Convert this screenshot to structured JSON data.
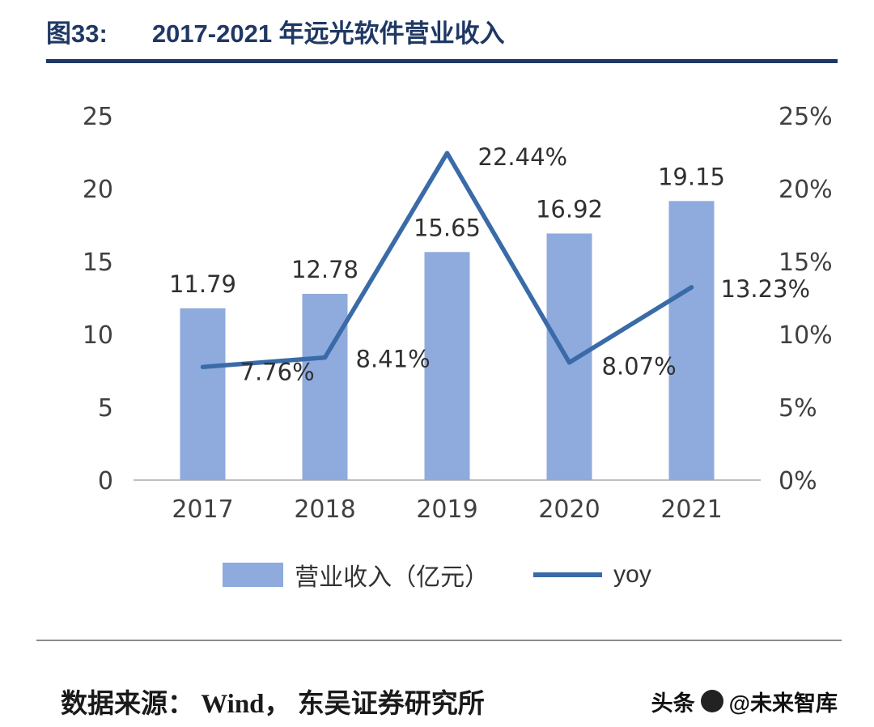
{
  "header": {
    "figure_label": "图33:",
    "title": "2017-2021 年远光软件营业收入"
  },
  "chart_data": {
    "type": "bar+line",
    "title": "2017-2021 年远光软件营业收入",
    "categories": [
      "2017",
      "2018",
      "2019",
      "2020",
      "2021"
    ],
    "series": [
      {
        "name": "营业收入（亿元）",
        "type": "bar",
        "axis": "left",
        "values": [
          11.79,
          12.78,
          15.65,
          16.92,
          19.15
        ],
        "labels": [
          "11.79",
          "12.78",
          "15.65",
          "16.92",
          "19.15"
        ],
        "color": "#8FAADC"
      },
      {
        "name": "yoy",
        "type": "line",
        "axis": "right",
        "values": [
          7.76,
          8.41,
          22.44,
          8.07,
          13.23
        ],
        "labels": [
          "7.76%",
          "8.41%",
          "22.44%",
          "8.07%",
          "13.23%"
        ],
        "color": "#3A6BA8"
      }
    ],
    "left_axis": {
      "ticks": [
        0,
        5,
        10,
        15,
        20,
        25
      ],
      "labels": [
        "0",
        "5",
        "10",
        "15",
        "20",
        "25"
      ],
      "range": [
        0,
        25
      ]
    },
    "right_axis": {
      "ticks": [
        0,
        5,
        10,
        15,
        20,
        25
      ],
      "labels": [
        "0%",
        "5%",
        "10%",
        "15%",
        "20%",
        "25%"
      ],
      "range": [
        0,
        25
      ]
    },
    "xlabel": "",
    "ylabel": "",
    "grid": false,
    "legend_position": "bottom"
  },
  "footer": {
    "source": "数据来源： Wind， 东吴证券研究所",
    "watermark_prefix": "头条",
    "watermark_name": "@未来智库"
  },
  "colors": {
    "title": "#1F3864",
    "bar": "#8FAADC",
    "line": "#3A6BA8",
    "axis_text": "#404040",
    "title_rule": "#1F3864",
    "bottom_rule": "#8C8C8C"
  }
}
